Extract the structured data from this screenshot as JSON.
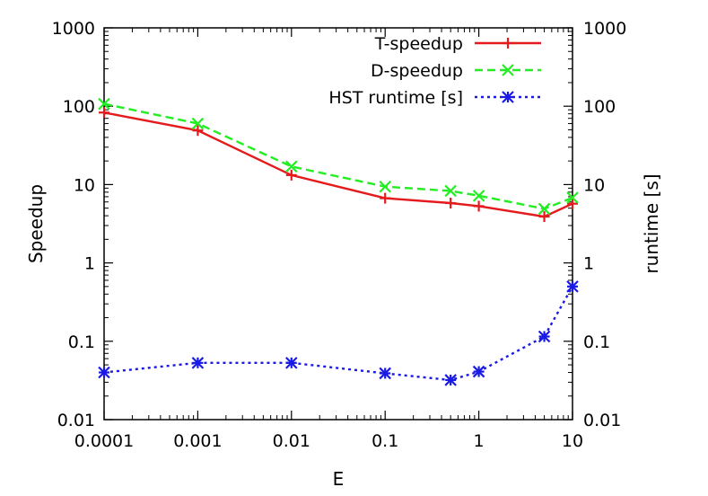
{
  "chart_data": {
    "type": "line",
    "xlabel": "E",
    "ylabel": "Speedup",
    "y2label": "runtime [s]",
    "x_scale": "log",
    "y_scale": "log",
    "xlim": [
      0.0001,
      10
    ],
    "ylim": [
      0.01,
      1000
    ],
    "y2lim": [
      0.01,
      1000
    ],
    "x_ticks": [
      0.0001,
      0.001,
      0.01,
      0.1,
      1,
      10
    ],
    "x_tick_labels": [
      "0.0001",
      "0.001",
      "0.01",
      "0.1",
      "1",
      "10"
    ],
    "y_ticks": [
      0.01,
      0.1,
      1,
      10,
      100,
      1000
    ],
    "y_tick_labels": [
      "0.01",
      "0.1",
      "1",
      "10",
      "100",
      "1000"
    ],
    "y2_tick_labels": [
      "0.01",
      "0.1",
      "1",
      "10",
      "100",
      "1000"
    ],
    "grid": false,
    "legend_position": "top-right",
    "x": [
      0.0001,
      0.001,
      0.01,
      0.1,
      0.5,
      1,
      5,
      10
    ],
    "series": [
      {
        "name": "T-speedup",
        "color": "#e41a1c",
        "dash": "solid",
        "marker": "plus",
        "values": [
          83,
          49,
          13.2,
          6.7,
          5.8,
          5.3,
          3.9,
          5.7
        ]
      },
      {
        "name": "D-speedup",
        "color": "#22ee22",
        "dash": "dashed",
        "marker": "x",
        "values": [
          107,
          60,
          17,
          9.4,
          8.3,
          7.2,
          4.9,
          6.8
        ]
      },
      {
        "name": "HST runtime [s]",
        "color": "#1a1ae6",
        "dash": "dotted",
        "marker": "star",
        "values": [
          0.04,
          0.053,
          0.053,
          0.039,
          0.032,
          0.041,
          0.115,
          0.5
        ]
      }
    ]
  }
}
